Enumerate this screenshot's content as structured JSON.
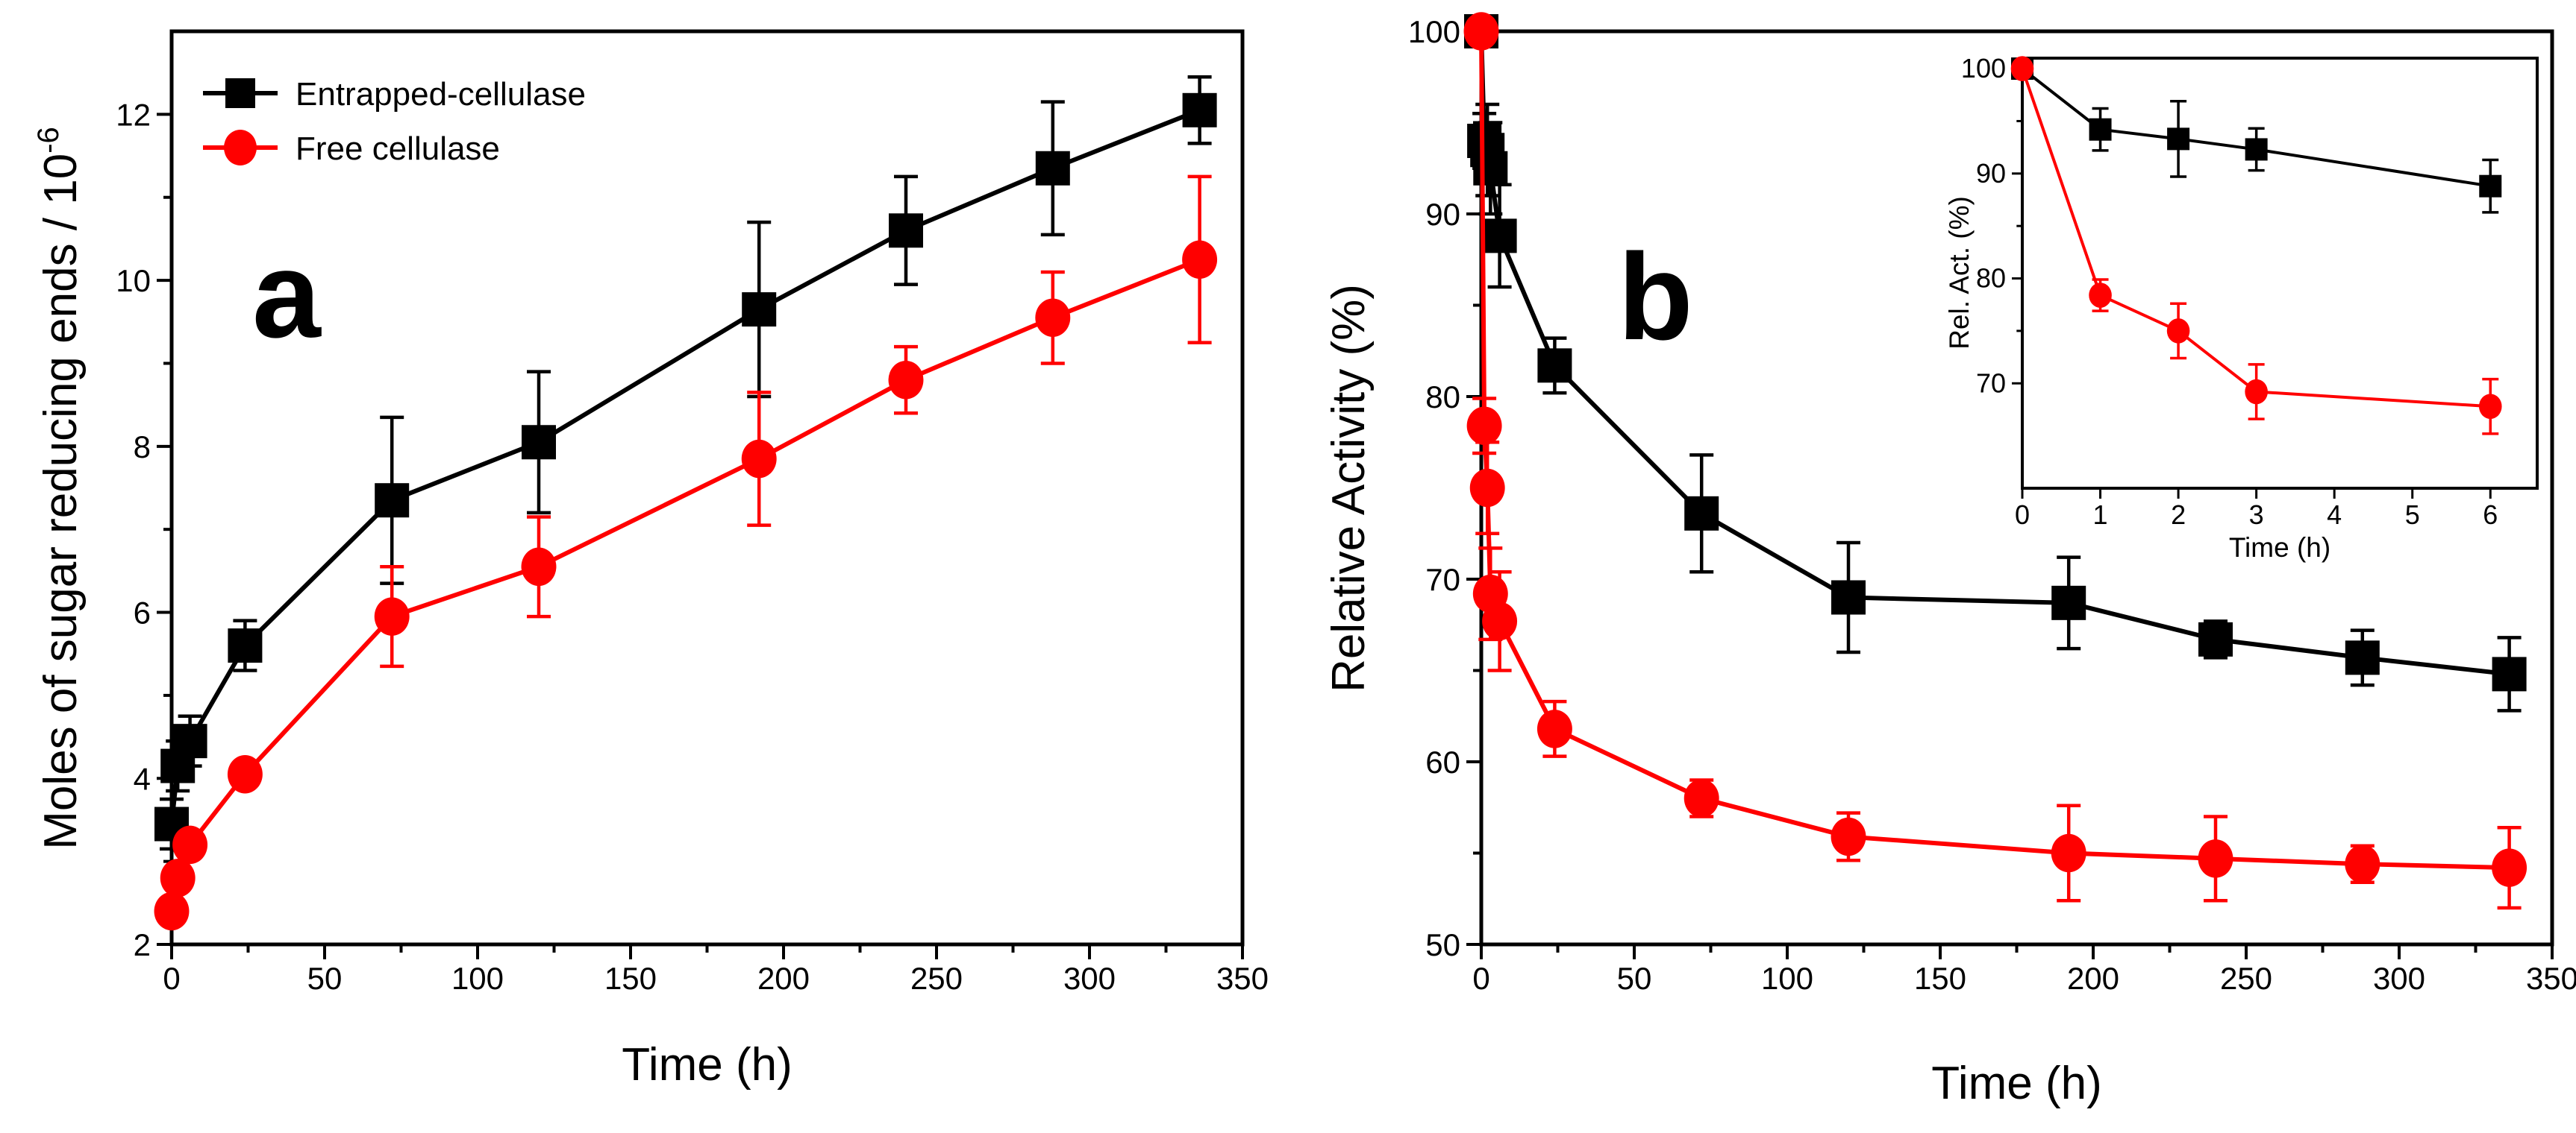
{
  "chart_data": [
    {
      "type": "line",
      "panel_label": "a",
      "xlabel": "Time (h)",
      "ylabel": "Moles of sugar reducing ends / 10",
      "ylabel_exponent": "-6",
      "xlim": [
        0,
        350
      ],
      "ylim": [
        2,
        13
      ],
      "xticks": [
        "0",
        "50",
        "100",
        "150",
        "200",
        "250",
        "300",
        "350"
      ],
      "yticks": [
        "2",
        "4",
        "6",
        "8",
        "10",
        "12"
      ],
      "grid": false,
      "legend_position": "top-left",
      "colors": {
        "entrapped": "#000000",
        "free": "#ff0000"
      },
      "series": [
        {
          "name": "Entrapped-cellulase",
          "color": "#000000",
          "marker": "square",
          "points": [
            {
              "x": 0,
              "y": 3.45,
              "err": 0.3
            },
            {
              "x": 2,
              "y": 4.15,
              "err": 0.3
            },
            {
              "x": 6,
              "y": 4.45,
              "err": 0.3
            },
            {
              "x": 24,
              "y": 5.6,
              "err": 0.3
            },
            {
              "x": 72,
              "y": 7.35,
              "err": 1.0
            },
            {
              "x": 120,
              "y": 8.05,
              "err": 0.85
            },
            {
              "x": 192,
              "y": 9.65,
              "err": 1.05
            },
            {
              "x": 240,
              "y": 10.6,
              "err": 0.65
            },
            {
              "x": 288,
              "y": 11.35,
              "err": 0.8
            },
            {
              "x": 336,
              "y": 12.05,
              "err": 0.4
            }
          ]
        },
        {
          "name": "Free cellulase",
          "color": "#ff0000",
          "marker": "circle",
          "points": [
            {
              "x": 0,
              "y": 2.4,
              "err": 0.15
            },
            {
              "x": 2,
              "y": 2.8,
              "err": 0.15
            },
            {
              "x": 6,
              "y": 3.2,
              "err": 0.15
            },
            {
              "x": 24,
              "y": 4.05,
              "err": 0.15
            },
            {
              "x": 72,
              "y": 5.95,
              "err": 0.6
            },
            {
              "x": 120,
              "y": 6.55,
              "err": 0.6
            },
            {
              "x": 192,
              "y": 7.85,
              "err": 0.8
            },
            {
              "x": 240,
              "y": 8.8,
              "err": 0.4
            },
            {
              "x": 288,
              "y": 9.55,
              "err": 0.55
            },
            {
              "x": 336,
              "y": 10.25,
              "err": 1.0
            }
          ]
        }
      ]
    },
    {
      "type": "line",
      "panel_label": "b",
      "xlabel": "Time (h)",
      "ylabel": "Relative Activity (%)",
      "xlim": [
        0,
        350
      ],
      "ylim": [
        50,
        100
      ],
      "xticks": [
        "0",
        "50",
        "100",
        "150",
        "200",
        "250",
        "300",
        "350"
      ],
      "yticks": [
        "50",
        "60",
        "70",
        "80",
        "90",
        "100"
      ],
      "grid": false,
      "series": [
        {
          "name": "Entrapped-cellulase",
          "color": "#000000",
          "marker": "square",
          "points": [
            {
              "x": 0,
              "y": 100,
              "err": 0
            },
            {
              "x": 1,
              "y": 94,
              "err": 1.5
            },
            {
              "x": 2,
              "y": 93.5,
              "err": 2.5
            },
            {
              "x": 3,
              "y": 92.5,
              "err": 2.5
            },
            {
              "x": 6,
              "y": 88.8,
              "err": 2.8
            },
            {
              "x": 24,
              "y": 81.7,
              "err": 1.5
            },
            {
              "x": 72,
              "y": 73.6,
              "err": 3.2
            },
            {
              "x": 120,
              "y": 69,
              "err": 3.0
            },
            {
              "x": 192,
              "y": 68.7,
              "err": 2.5
            },
            {
              "x": 240,
              "y": 66.7,
              "err": 1.0
            },
            {
              "x": 288,
              "y": 65.7,
              "err": 1.5
            },
            {
              "x": 336,
              "y": 64.8,
              "err": 2.0
            }
          ]
        },
        {
          "name": "Free cellulase",
          "color": "#ff0000",
          "marker": "circle",
          "points": [
            {
              "x": 0,
              "y": 100,
              "err": 0
            },
            {
              "x": 1,
              "y": 78.4,
              "err": 1.5
            },
            {
              "x": 2,
              "y": 75,
              "err": 2.5
            },
            {
              "x": 3,
              "y": 69.2,
              "err": 2.5
            },
            {
              "x": 6,
              "y": 67.7,
              "err": 2.7
            },
            {
              "x": 24,
              "y": 61.8,
              "err": 1.5
            },
            {
              "x": 72,
              "y": 58,
              "err": 1.0
            },
            {
              "x": 120,
              "y": 55.9,
              "err": 1.3
            },
            {
              "x": 192,
              "y": 55,
              "err": 2.6
            },
            {
              "x": 240,
              "y": 54.7,
              "err": 2.3
            },
            {
              "x": 288,
              "y": 54.4,
              "err": 1.0
            },
            {
              "x": 336,
              "y": 54.2,
              "err": 2.2
            }
          ]
        }
      ],
      "inset": {
        "type": "line",
        "xlabel": "Time (h)",
        "ylabel": "Rel. Act. (%)",
        "xlim": [
          0,
          6.6
        ],
        "ylim": [
          60,
          101
        ],
        "xticks": [
          "0",
          "1",
          "2",
          "3",
          "4",
          "5",
          "6"
        ],
        "yticks": [
          "70",
          "80",
          "90",
          "100"
        ],
        "series": [
          {
            "name": "Entrapped-cellulase",
            "color": "#000000",
            "marker": "square",
            "points": [
              {
                "x": 0,
                "y": 100,
                "err": 0
              },
              {
                "x": 1,
                "y": 94.2,
                "err": 2.0
              },
              {
                "x": 2,
                "y": 93.3,
                "err": 3.6
              },
              {
                "x": 3,
                "y": 92.3,
                "err": 2.0
              },
              {
                "x": 6,
                "y": 88.8,
                "err": 2.5
              }
            ]
          },
          {
            "name": "Free cellulase",
            "color": "#ff0000",
            "marker": "circle",
            "points": [
              {
                "x": 0,
                "y": 100,
                "err": 0
              },
              {
                "x": 1,
                "y": 78.4,
                "err": 1.5
              },
              {
                "x": 2,
                "y": 75,
                "err": 2.6
              },
              {
                "x": 3,
                "y": 69.2,
                "err": 2.6
              },
              {
                "x": 6,
                "y": 67.8,
                "err": 2.6
              }
            ]
          }
        ]
      }
    }
  ]
}
